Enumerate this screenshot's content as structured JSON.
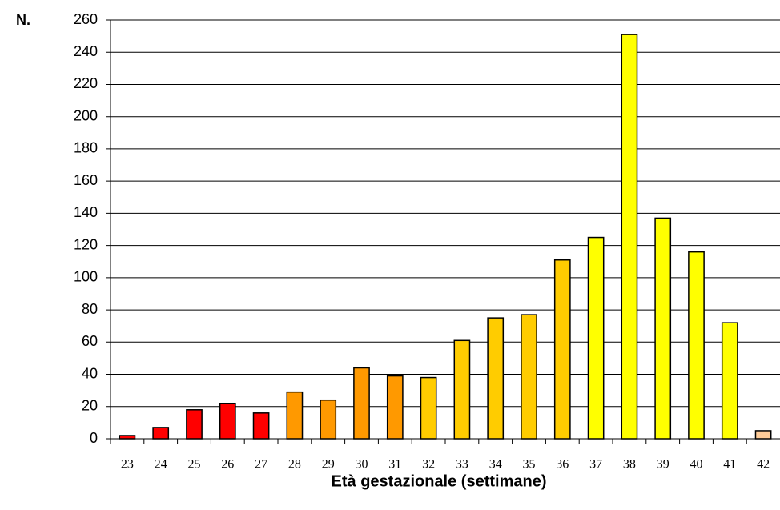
{
  "chart_data": {
    "type": "bar",
    "y_label": "N.",
    "x_label": "Età gestazionale (settimane)",
    "categories": [
      "23",
      "24",
      "25",
      "26",
      "27",
      "28",
      "29",
      "30",
      "31",
      "32",
      "33",
      "34",
      "35",
      "36",
      "37",
      "38",
      "39",
      "40",
      "41",
      "42"
    ],
    "values": [
      2,
      7,
      18,
      22,
      16,
      29,
      24,
      44,
      39,
      38,
      61,
      75,
      77,
      111,
      125,
      251,
      137,
      116,
      72,
      5
    ],
    "colors": [
      "#ff0000",
      "#ff0000",
      "#ff0000",
      "#ff0000",
      "#ff0000",
      "#ff9900",
      "#ff9900",
      "#ff9900",
      "#ff9900",
      "#ffcc00",
      "#ffcc00",
      "#ffcc00",
      "#ffcc00",
      "#ffcc00",
      "#ffff00",
      "#ffff00",
      "#ffff00",
      "#ffff00",
      "#ffff00",
      "#ffcc99"
    ],
    "ylim": [
      0,
      260
    ],
    "yticks": [
      0,
      20,
      40,
      60,
      80,
      100,
      120,
      140,
      160,
      180,
      200,
      220,
      240,
      260
    ],
    "grid": true
  }
}
